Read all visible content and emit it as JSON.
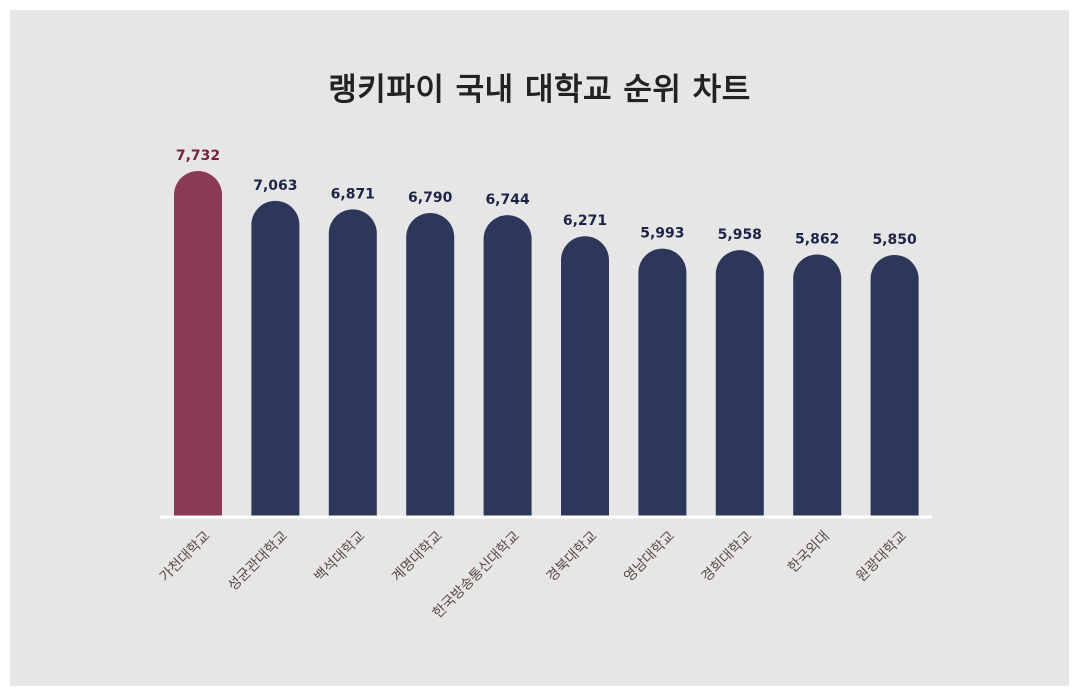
{
  "title": "랭키파이 국내 대학교 순위 차트",
  "colors": {
    "background": "#e6e6e6",
    "highlight_bar": "#8a3a55",
    "bar": "#2c375a",
    "highlight_label": "#7a1f3a",
    "value_label": "#1d2547",
    "baseline": "#ffffff"
  },
  "chart_data": {
    "type": "bar",
    "title": "랭키파이 국내 대학교 순위 차트",
    "categories": [
      "가천대학교",
      "성균관대학교",
      "백석대학교",
      "계명대학교",
      "한국방송통신대학교",
      "경북대학교",
      "영남대학교",
      "경희대학교",
      "한국외대",
      "원광대학교"
    ],
    "values": [
      7732,
      7063,
      6871,
      6790,
      6744,
      6271,
      5993,
      5958,
      5862,
      5850
    ],
    "value_labels": [
      "7,732",
      "7,063",
      "6,871",
      "6,790",
      "6,744",
      "6,271",
      "5,993",
      "5,958",
      "5,862",
      "5,850"
    ],
    "highlight_index": 0,
    "xlabel": "",
    "ylabel": "",
    "ylim": [
      0,
      7732
    ],
    "grid": false
  }
}
